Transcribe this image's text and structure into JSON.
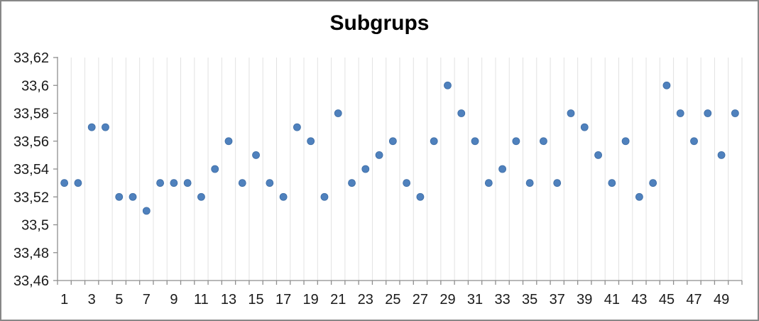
{
  "chart_data": {
    "type": "scatter",
    "title": "Subgrups",
    "xlabel": "",
    "ylabel": "",
    "legend": "none",
    "grid": "vertical-only",
    "decimal_separator": ",",
    "x": [
      1,
      2,
      3,
      4,
      5,
      6,
      7,
      8,
      9,
      10,
      11,
      12,
      13,
      14,
      15,
      16,
      17,
      18,
      19,
      20,
      21,
      22,
      23,
      24,
      25,
      26,
      27,
      28,
      29,
      30,
      31,
      32,
      33,
      34,
      35,
      36,
      37,
      38,
      39,
      40,
      41,
      42,
      43,
      44,
      45,
      46,
      47,
      48,
      49,
      50
    ],
    "values": [
      33.53,
      33.53,
      33.57,
      33.57,
      33.52,
      33.52,
      33.51,
      33.53,
      33.53,
      33.53,
      33.52,
      33.54,
      33.56,
      33.53,
      33.55,
      33.53,
      33.52,
      33.57,
      33.56,
      33.52,
      33.58,
      33.53,
      33.54,
      33.55,
      33.56,
      33.53,
      33.52,
      33.56,
      33.6,
      33.58,
      33.56,
      33.53,
      33.54,
      33.56,
      33.53,
      33.56,
      33.53,
      33.58,
      33.57,
      33.55,
      33.53,
      33.56,
      33.52,
      33.53,
      33.6,
      33.58,
      33.56,
      33.58,
      33.55,
      33.58
    ],
    "ylim": [
      33.46,
      33.62
    ],
    "xlim": [
      0,
      50
    ],
    "yticks": [
      33.46,
      33.48,
      33.5,
      33.52,
      33.54,
      33.56,
      33.58,
      33.6,
      33.62
    ],
    "y_tick_labels": [
      "33,46",
      "33,48",
      "33,5",
      "33,52",
      "33,54",
      "33,56",
      "33,58",
      "33,6",
      "33,62"
    ],
    "xticks": [
      1,
      3,
      5,
      7,
      9,
      11,
      13,
      15,
      17,
      19,
      21,
      23,
      25,
      27,
      29,
      31,
      33,
      35,
      37,
      39,
      41,
      43,
      45,
      47,
      49
    ],
    "x_tick_labels": [
      "1",
      "3",
      "5",
      "7",
      "9",
      "11",
      "13",
      "15",
      "17",
      "19",
      "21",
      "23",
      "25",
      "27",
      "29",
      "31",
      "33",
      "35",
      "37",
      "39",
      "41",
      "43",
      "45",
      "47",
      "49"
    ],
    "colors": {
      "marker": "#4F81BD",
      "marker_edge": "#3D6DA6",
      "grid": "#E2E2E2",
      "axis": "#8E8E8E",
      "border": "#878787",
      "label": "#1A1A1A",
      "title": "#000000"
    },
    "marker_radius": 5,
    "tick_font_size": 20,
    "title_font_size": 30
  }
}
